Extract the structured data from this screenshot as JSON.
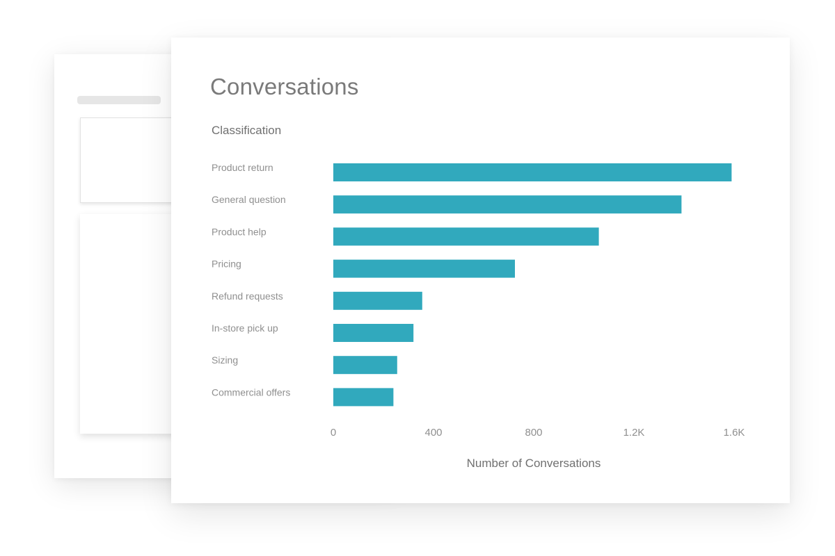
{
  "title": "Conversations",
  "subtitle": "Classification",
  "chart_data": {
    "type": "bar",
    "orientation": "horizontal",
    "categories": [
      "Product return",
      "General question",
      "Product help",
      "Pricing",
      "Refund requests",
      "In-store pick up",
      "Sizing",
      "Commercial offers"
    ],
    "values": [
      1590,
      1390,
      1060,
      725,
      355,
      320,
      255,
      240
    ],
    "xlim": [
      0,
      1600
    ],
    "xticks": [
      0,
      400,
      800,
      1200,
      1600
    ],
    "xtick_labels": [
      "0",
      "400",
      "800",
      "1.2K",
      "1.6K"
    ],
    "xlabel": "Number of Conversations",
    "ylabel": "",
    "grid": false,
    "legend": "none",
    "bar_color": "#31a9bd"
  }
}
